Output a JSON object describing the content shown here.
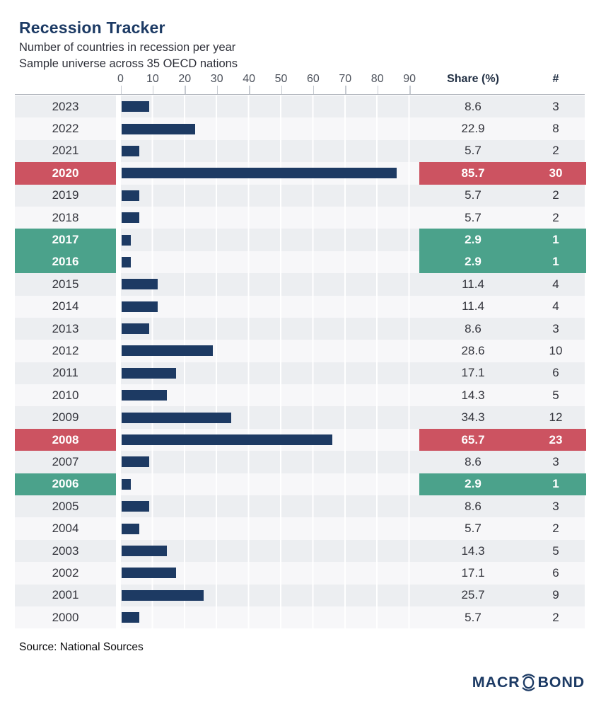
{
  "header": {
    "title": "Recession Tracker",
    "subtitle1": "Number of countries in recession per year",
    "subtitle2": "Sample universe across 35 OECD nations"
  },
  "axis": {
    "ticks": [
      "0",
      "10",
      "20",
      "30",
      "40",
      "50",
      "60",
      "70",
      "80",
      "90"
    ],
    "share_header": "Share (%)",
    "count_header": "#"
  },
  "rows": [
    {
      "year": "2023",
      "share": "8.6",
      "count": "3",
      "highlight": null
    },
    {
      "year": "2022",
      "share": "22.9",
      "count": "8",
      "highlight": null
    },
    {
      "year": "2021",
      "share": "5.7",
      "count": "2",
      "highlight": null
    },
    {
      "year": "2020",
      "share": "85.7",
      "count": "30",
      "highlight": "red"
    },
    {
      "year": "2019",
      "share": "5.7",
      "count": "2",
      "highlight": null
    },
    {
      "year": "2018",
      "share": "5.7",
      "count": "2",
      "highlight": null
    },
    {
      "year": "2017",
      "share": "2.9",
      "count": "1",
      "highlight": "green"
    },
    {
      "year": "2016",
      "share": "2.9",
      "count": "1",
      "highlight": "green"
    },
    {
      "year": "2015",
      "share": "11.4",
      "count": "4",
      "highlight": null
    },
    {
      "year": "2014",
      "share": "11.4",
      "count": "4",
      "highlight": null
    },
    {
      "year": "2013",
      "share": "8.6",
      "count": "3",
      "highlight": null
    },
    {
      "year": "2012",
      "share": "28.6",
      "count": "10",
      "highlight": null
    },
    {
      "year": "2011",
      "share": "17.1",
      "count": "6",
      "highlight": null
    },
    {
      "year": "2010",
      "share": "14.3",
      "count": "5",
      "highlight": null
    },
    {
      "year": "2009",
      "share": "34.3",
      "count": "12",
      "highlight": null
    },
    {
      "year": "2008",
      "share": "65.7",
      "count": "23",
      "highlight": "red"
    },
    {
      "year": "2007",
      "share": "8.6",
      "count": "3",
      "highlight": null
    },
    {
      "year": "2006",
      "share": "2.9",
      "count": "1",
      "highlight": "green"
    },
    {
      "year": "2005",
      "share": "8.6",
      "count": "3",
      "highlight": null
    },
    {
      "year": "2004",
      "share": "5.7",
      "count": "2",
      "highlight": null
    },
    {
      "year": "2003",
      "share": "14.3",
      "count": "5",
      "highlight": null
    },
    {
      "year": "2002",
      "share": "17.1",
      "count": "6",
      "highlight": null
    },
    {
      "year": "2001",
      "share": "25.7",
      "count": "9",
      "highlight": null
    },
    {
      "year": "2000",
      "share": "5.7",
      "count": "2",
      "highlight": null
    }
  ],
  "footer": {
    "source": "Source: National Sources",
    "logo_pre": "MACR",
    "logo_post": "BOND"
  },
  "colors": {
    "bar_navy": "#1d3a63",
    "title_navy": "#1c3a64",
    "accent_red": "#cc5361",
    "accent_green": "#4ba28b",
    "row_gray": "#eceef1",
    "row_light": "#f7f7f9"
  },
  "chart_data": {
    "type": "bar",
    "orientation": "horizontal",
    "title": "Recession Tracker",
    "subtitle": [
      "Number of countries in recession per year",
      "Sample universe across 35 OECD nations"
    ],
    "sample_universe": 35,
    "categories": [
      2023,
      2022,
      2021,
      2020,
      2019,
      2018,
      2017,
      2016,
      2015,
      2014,
      2013,
      2012,
      2011,
      2010,
      2009,
      2008,
      2007,
      2006,
      2005,
      2004,
      2003,
      2002,
      2001,
      2000
    ],
    "series": [
      {
        "name": "Share (%)",
        "values": [
          8.6,
          22.9,
          5.7,
          85.7,
          5.7,
          5.7,
          2.9,
          2.9,
          11.4,
          11.4,
          8.6,
          28.6,
          17.1,
          14.3,
          34.3,
          65.7,
          8.6,
          2.9,
          8.6,
          5.7,
          14.3,
          17.1,
          25.7,
          5.7
        ]
      },
      {
        "name": "#",
        "values": [
          3,
          8,
          2,
          30,
          2,
          2,
          1,
          1,
          4,
          4,
          3,
          10,
          6,
          5,
          12,
          23,
          3,
          1,
          3,
          2,
          5,
          6,
          9,
          2
        ]
      }
    ],
    "xlabel": "Share (%)",
    "xlim": [
      0,
      100
    ],
    "xticks": [
      0,
      10,
      20,
      30,
      40,
      50,
      60,
      70,
      80,
      90
    ],
    "grid": true,
    "legend_position": "none",
    "highlighted_red_years": [
      2020,
      2008
    ],
    "highlighted_green_years": [
      2017,
      2016,
      2006
    ],
    "source": "Source: National Sources"
  }
}
